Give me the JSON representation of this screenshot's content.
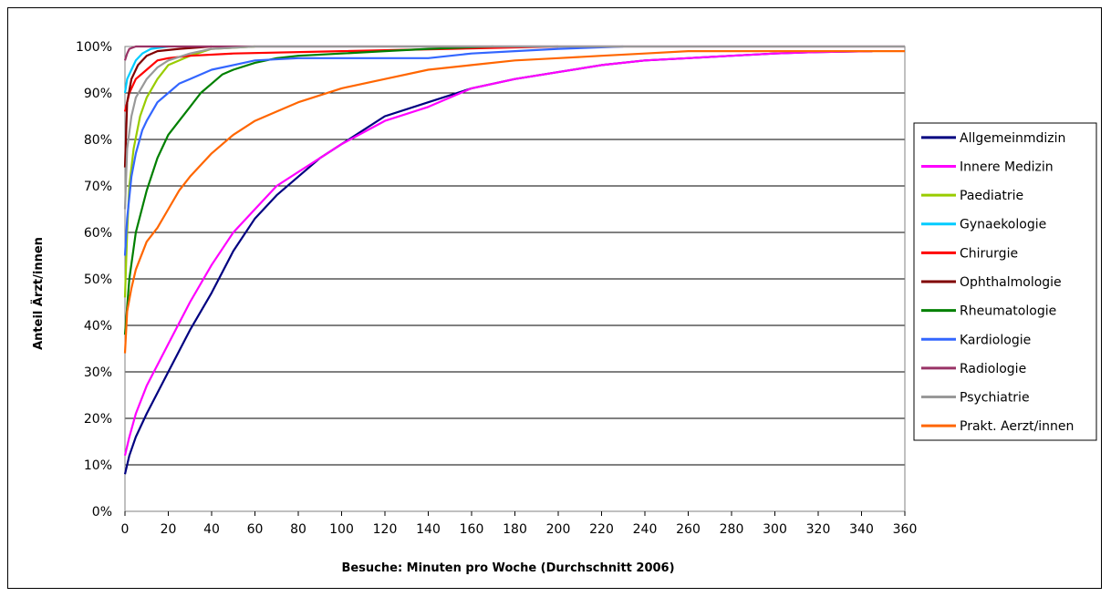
{
  "chart_data": {
    "type": "line",
    "title": "",
    "xlabel": "Besuche: Minuten pro Woche (Durchschnitt 2006)",
    "ylabel": "Anteil Ärzt/innen",
    "xlim": [
      0,
      360
    ],
    "ylim": [
      0,
      100
    ],
    "x_ticks": [
      0,
      20,
      40,
      60,
      80,
      100,
      120,
      140,
      160,
      180,
      200,
      220,
      240,
      260,
      280,
      300,
      320,
      340,
      360
    ],
    "y_ticks": [
      0,
      10,
      20,
      30,
      40,
      50,
      60,
      70,
      80,
      90,
      100
    ],
    "y_tick_labels": [
      "0%",
      "10%",
      "20%",
      "30%",
      "40%",
      "50%",
      "60%",
      "70%",
      "80%",
      "90%",
      "100%"
    ],
    "grid": "horizontal",
    "legend_position": "right",
    "series": [
      {
        "name": "Allgemeinmdizin",
        "color": "#000080",
        "points": [
          [
            0,
            8
          ],
          [
            2,
            12
          ],
          [
            5,
            16
          ],
          [
            10,
            21
          ],
          [
            20,
            30
          ],
          [
            30,
            39
          ],
          [
            40,
            47
          ],
          [
            50,
            56
          ],
          [
            60,
            63
          ],
          [
            70,
            68
          ],
          [
            80,
            72
          ],
          [
            90,
            76
          ],
          [
            100,
            79
          ],
          [
            120,
            85
          ],
          [
            140,
            88
          ],
          [
            160,
            91
          ],
          [
            180,
            93
          ],
          [
            200,
            94.5
          ],
          [
            220,
            96
          ],
          [
            240,
            97
          ],
          [
            260,
            97.5
          ],
          [
            280,
            98
          ],
          [
            300,
            98.5
          ],
          [
            320,
            98.8
          ],
          [
            345,
            99
          ]
        ]
      },
      {
        "name": "Innere Medizin",
        "color": "#FF00FF",
        "points": [
          [
            0,
            12
          ],
          [
            2,
            16
          ],
          [
            5,
            21
          ],
          [
            10,
            27
          ],
          [
            20,
            36
          ],
          [
            30,
            45
          ],
          [
            40,
            53
          ],
          [
            50,
            60
          ],
          [
            60,
            65
          ],
          [
            70,
            70
          ],
          [
            80,
            73
          ],
          [
            90,
            76
          ],
          [
            100,
            79
          ],
          [
            120,
            84
          ],
          [
            140,
            87
          ],
          [
            160,
            91
          ],
          [
            180,
            93
          ],
          [
            200,
            94.5
          ],
          [
            220,
            96
          ],
          [
            240,
            97
          ],
          [
            260,
            97.5
          ],
          [
            280,
            98
          ],
          [
            300,
            98.5
          ],
          [
            320,
            98.8
          ],
          [
            345,
            99
          ]
        ]
      },
      {
        "name": "Paediatrie",
        "color": "#99CC00",
        "points": [
          [
            0,
            46
          ],
          [
            1,
            60
          ],
          [
            2,
            70
          ],
          [
            4,
            78
          ],
          [
            7,
            85
          ],
          [
            10,
            89
          ],
          [
            15,
            93
          ],
          [
            20,
            96
          ],
          [
            30,
            98
          ],
          [
            40,
            99.5
          ],
          [
            60,
            100
          ]
        ]
      },
      {
        "name": "Gynaekologie",
        "color": "#00CCFF",
        "points": [
          [
            0,
            90
          ],
          [
            1,
            93
          ],
          [
            3,
            95
          ],
          [
            5,
            97
          ],
          [
            8,
            98.5
          ],
          [
            12,
            99.5
          ],
          [
            20,
            100
          ]
        ]
      },
      {
        "name": "Chirurgie",
        "color": "#FF0000",
        "points": [
          [
            0,
            86
          ],
          [
            2,
            90
          ],
          [
            5,
            93
          ],
          [
            10,
            95
          ],
          [
            15,
            97
          ],
          [
            20,
            97.5
          ],
          [
            30,
            98
          ],
          [
            50,
            98.5
          ],
          [
            100,
            99
          ],
          [
            150,
            99.5
          ],
          [
            200,
            100
          ]
        ]
      },
      {
        "name": "Ophthalmologie",
        "color": "#800000",
        "points": [
          [
            0,
            74
          ],
          [
            1,
            88
          ],
          [
            3,
            93
          ],
          [
            6,
            96
          ],
          [
            10,
            98
          ],
          [
            15,
            99
          ],
          [
            25,
            99.5
          ],
          [
            40,
            100
          ]
        ]
      },
      {
        "name": "Rheumatologie",
        "color": "#008000",
        "points": [
          [
            0,
            38
          ],
          [
            2,
            50
          ],
          [
            5,
            60
          ],
          [
            10,
            69
          ],
          [
            15,
            76
          ],
          [
            20,
            81
          ],
          [
            25,
            84
          ],
          [
            30,
            87
          ],
          [
            35,
            90
          ],
          [
            40,
            92
          ],
          [
            45,
            94
          ],
          [
            50,
            95
          ],
          [
            60,
            96.5
          ],
          [
            70,
            97.5
          ],
          [
            80,
            98
          ],
          [
            100,
            98.5
          ],
          [
            120,
            99
          ],
          [
            140,
            99.5
          ],
          [
            170,
            100
          ]
        ]
      },
      {
        "name": "Kardiologie",
        "color": "#3366FF",
        "points": [
          [
            0,
            55
          ],
          [
            1,
            63
          ],
          [
            3,
            72
          ],
          [
            5,
            77
          ],
          [
            8,
            82
          ],
          [
            10,
            84
          ],
          [
            15,
            88
          ],
          [
            20,
            90
          ],
          [
            25,
            92
          ],
          [
            30,
            93
          ],
          [
            40,
            95
          ],
          [
            50,
            96
          ],
          [
            60,
            97
          ],
          [
            80,
            97.5
          ],
          [
            140,
            97.5
          ],
          [
            160,
            98.5
          ],
          [
            180,
            99
          ],
          [
            200,
            99.5
          ],
          [
            230,
            100
          ]
        ]
      },
      {
        "name": "Radiologie",
        "color": "#993366",
        "points": [
          [
            0,
            97
          ],
          [
            1,
            98.5
          ],
          [
            2,
            99.5
          ],
          [
            5,
            100
          ],
          [
            360,
            100
          ]
        ]
      },
      {
        "name": "Psychiatrie",
        "color": "#999999",
        "points": [
          [
            0,
            65
          ],
          [
            1,
            78
          ],
          [
            3,
            85
          ],
          [
            5,
            89
          ],
          [
            10,
            93
          ],
          [
            15,
            95.5
          ],
          [
            20,
            97
          ],
          [
            30,
            98.5
          ],
          [
            40,
            99.5
          ],
          [
            60,
            100
          ],
          [
            360,
            100
          ]
        ]
      },
      {
        "name": "Prakt. Aerzt/innen",
        "color": "#FF6600",
        "points": [
          [
            0,
            34
          ],
          [
            1,
            43
          ],
          [
            3,
            48
          ],
          [
            5,
            52
          ],
          [
            10,
            58
          ],
          [
            15,
            61
          ],
          [
            20,
            65
          ],
          [
            25,
            69
          ],
          [
            30,
            72
          ],
          [
            40,
            77
          ],
          [
            50,
            81
          ],
          [
            60,
            84
          ],
          [
            70,
            86
          ],
          [
            80,
            88
          ],
          [
            90,
            89.5
          ],
          [
            100,
            91
          ],
          [
            120,
            93
          ],
          [
            140,
            95
          ],
          [
            160,
            96
          ],
          [
            180,
            97
          ],
          [
            200,
            97.5
          ],
          [
            220,
            98
          ],
          [
            240,
            98.5
          ],
          [
            260,
            99
          ],
          [
            300,
            99
          ],
          [
            360,
            99
          ]
        ]
      }
    ]
  }
}
